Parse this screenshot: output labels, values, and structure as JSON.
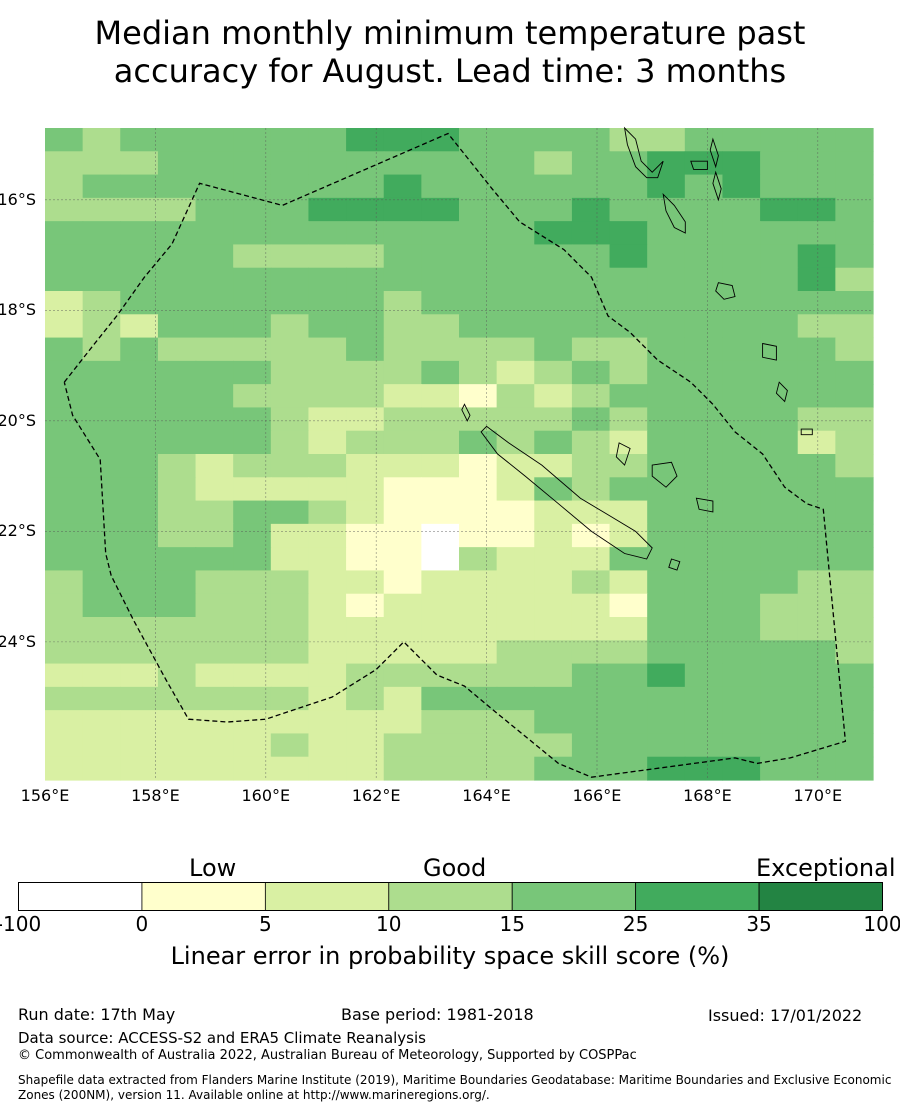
{
  "title_line1": "Median monthly minimum temperature past",
  "title_line2": "accuracy for August. Lead time: 3 months",
  "map": {
    "lon_range": [
      156,
      171
    ],
    "lat_range": [
      -26.5,
      -14.7
    ],
    "lat_ticks": [
      {
        "value": -16,
        "label": "16°S"
      },
      {
        "value": -18,
        "label": "18°S"
      },
      {
        "value": -20,
        "label": "20°S"
      },
      {
        "value": -22,
        "label": "22°S"
      },
      {
        "value": -24,
        "label": "24°S"
      }
    ],
    "lon_ticks": [
      {
        "value": 156,
        "label": "156°E"
      },
      {
        "value": 158,
        "label": "158°E"
      },
      {
        "value": 160,
        "label": "160°E"
      },
      {
        "value": 162,
        "label": "162°E"
      },
      {
        "value": 164,
        "label": "164°E"
      },
      {
        "value": 166,
        "label": "166°E"
      },
      {
        "value": 168,
        "label": "168°E"
      },
      {
        "value": 170,
        "label": "170°E"
      }
    ],
    "grid": true,
    "class_colors": [
      "#ffffff",
      "#ffffcc",
      "#d9f0a3",
      "#addd8e",
      "#78c679",
      "#41ab5d",
      "#238443"
    ],
    "skill_class_rows": [
      "4344444455544443344444",
      "3334444444444344555444",
      "3444444445444444545444",
      "3333444555544454444554",
      "4444444444444555444444",
      "4444433334444445444454",
      "4444444444444444444453",
      "2344444443444444444444",
      "2324443443344444444433",
      "4343333343333433444443",
      "4444443333432343444444",
      "4444433332213234444444",
      "4444443223333343444433",
      "4444443233343432444423",
      "4443233322212233444443",
      "4443222221112434444444",
      "4443344321111222444444",
      "4443342211011212444444",
      "4444442211032224444444",
      "3444333221222232444433",
      "3444333212222221444333",
      "3333333222222222444333",
      "3333333222223333444443",
      "2223222233333344544444",
      "3333333232444444444444",
      "2222222222333444444444",
      "2222223223333344444444",
      "2222222223333444555444"
    ],
    "eez_boundary": [
      [
        156.35,
        -19.3
      ],
      [
        156.9,
        -18.6
      ],
      [
        157.3,
        -18.1
      ],
      [
        157.8,
        -17.4
      ],
      [
        158.3,
        -16.8
      ],
      [
        158.8,
        -15.7
      ],
      [
        160.3,
        -16.1
      ],
      [
        163.3,
        -14.8
      ],
      [
        164.1,
        -15.8
      ],
      [
        164.6,
        -16.4
      ],
      [
        165.4,
        -16.9
      ],
      [
        165.9,
        -17.4
      ],
      [
        166.2,
        -18.1
      ],
      [
        166.6,
        -18.4
      ],
      [
        167.1,
        -18.9
      ],
      [
        167.7,
        -19.3
      ],
      [
        168.1,
        -19.7
      ],
      [
        168.5,
        -20.2
      ],
      [
        169.0,
        -20.6
      ],
      [
        169.4,
        -21.2
      ],
      [
        169.8,
        -21.5
      ],
      [
        170.1,
        -21.6
      ],
      [
        170.5,
        -25.8
      ],
      [
        169.5,
        -26.1
      ],
      [
        168.9,
        -26.2
      ],
      [
        168.5,
        -26.1
      ],
      [
        165.9,
        -26.45
      ],
      [
        165.3,
        -26.2
      ],
      [
        164.2,
        -25.3
      ],
      [
        163.6,
        -24.8
      ],
      [
        163.1,
        -24.6
      ],
      [
        162.5,
        -24.0
      ],
      [
        162.0,
        -24.5
      ],
      [
        161.2,
        -25.0
      ],
      [
        160.0,
        -25.4
      ],
      [
        159.3,
        -25.45
      ],
      [
        158.6,
        -25.4
      ],
      [
        158.2,
        -24.7
      ],
      [
        157.6,
        -23.6
      ],
      [
        157.2,
        -22.8
      ],
      [
        157.1,
        -22.4
      ],
      [
        157.0,
        -20.7
      ],
      [
        156.5,
        -19.9
      ],
      [
        156.35,
        -19.3
      ]
    ],
    "islands": [
      {
        "name": "New Caledonia",
        "points": [
          [
            164.0,
            -20.1
          ],
          [
            164.4,
            -20.4
          ],
          [
            165.0,
            -20.8
          ],
          [
            165.7,
            -21.4
          ],
          [
            166.2,
            -21.7
          ],
          [
            166.7,
            -22.0
          ],
          [
            167.0,
            -22.3
          ],
          [
            166.9,
            -22.5
          ],
          [
            166.5,
            -22.4
          ],
          [
            165.9,
            -22.0
          ],
          [
            165.3,
            -21.5
          ],
          [
            164.7,
            -21.0
          ],
          [
            164.2,
            -20.6
          ],
          [
            163.9,
            -20.2
          ]
        ]
      },
      {
        "name": "Belep",
        "points": [
          [
            163.6,
            -19.7
          ],
          [
            163.7,
            -19.9
          ],
          [
            163.65,
            -20.0
          ],
          [
            163.55,
            -19.8
          ]
        ]
      },
      {
        "name": "Ouvea",
        "points": [
          [
            166.4,
            -20.4
          ],
          [
            166.6,
            -20.5
          ],
          [
            166.5,
            -20.8
          ],
          [
            166.35,
            -20.65
          ]
        ]
      },
      {
        "name": "Lifou",
        "points": [
          [
            167.0,
            -20.8
          ],
          [
            167.35,
            -20.75
          ],
          [
            167.45,
            -21.0
          ],
          [
            167.25,
            -21.2
          ],
          [
            167.0,
            -21.0
          ]
        ]
      },
      {
        "name": "Mare",
        "points": [
          [
            167.8,
            -21.4
          ],
          [
            168.1,
            -21.45
          ],
          [
            168.1,
            -21.65
          ],
          [
            167.85,
            -21.6
          ]
        ]
      },
      {
        "name": "Isle of Pines",
        "points": [
          [
            167.35,
            -22.5
          ],
          [
            167.5,
            -22.55
          ],
          [
            167.45,
            -22.7
          ],
          [
            167.3,
            -22.65
          ]
        ]
      },
      {
        "name": "Espiritu Santo",
        "points": [
          [
            166.5,
            -14.7
          ],
          [
            166.7,
            -14.9
          ],
          [
            166.8,
            -15.3
          ],
          [
            167.0,
            -15.5
          ],
          [
            167.2,
            -15.3
          ],
          [
            167.1,
            -15.6
          ],
          [
            166.9,
            -15.6
          ],
          [
            166.7,
            -15.4
          ],
          [
            166.55,
            -15.0
          ]
        ]
      },
      {
        "name": "Malakula",
        "points": [
          [
            167.2,
            -15.9
          ],
          [
            167.4,
            -16.1
          ],
          [
            167.6,
            -16.4
          ],
          [
            167.6,
            -16.6
          ],
          [
            167.4,
            -16.5
          ],
          [
            167.25,
            -16.2
          ]
        ]
      },
      {
        "name": "Maewo",
        "points": [
          [
            168.1,
            -14.9
          ],
          [
            168.2,
            -15.2
          ],
          [
            168.15,
            -15.4
          ],
          [
            168.05,
            -15.1
          ]
        ]
      },
      {
        "name": "Pentecost",
        "points": [
          [
            168.15,
            -15.5
          ],
          [
            168.25,
            -15.8
          ],
          [
            168.2,
            -16.0
          ],
          [
            168.1,
            -15.7
          ]
        ]
      },
      {
        "name": "Ambae",
        "points": [
          [
            167.7,
            -15.3
          ],
          [
            168.0,
            -15.3
          ],
          [
            168.0,
            -15.45
          ],
          [
            167.75,
            -15.45
          ]
        ]
      },
      {
        "name": "Efate",
        "points": [
          [
            168.2,
            -17.5
          ],
          [
            168.45,
            -17.55
          ],
          [
            168.5,
            -17.75
          ],
          [
            168.3,
            -17.8
          ],
          [
            168.15,
            -17.65
          ]
        ]
      },
      {
        "name": "Erromango",
        "points": [
          [
            169.0,
            -18.6
          ],
          [
            169.25,
            -18.65
          ],
          [
            169.25,
            -18.9
          ],
          [
            169.0,
            -18.85
          ]
        ]
      },
      {
        "name": "Tanna",
        "points": [
          [
            169.3,
            -19.3
          ],
          [
            169.45,
            -19.45
          ],
          [
            169.4,
            -19.65
          ],
          [
            169.25,
            -19.5
          ]
        ]
      },
      {
        "name": "Aneityum",
        "points": [
          [
            169.7,
            -20.15
          ],
          [
            169.9,
            -20.15
          ],
          [
            169.9,
            -20.25
          ],
          [
            169.7,
            -20.25
          ]
        ]
      }
    ]
  },
  "colorbar": {
    "labels": {
      "low": "Low",
      "good": "Good",
      "exceptional": "Exceptional"
    },
    "ticks": [
      "-100",
      "0",
      "5",
      "10",
      "15",
      "25",
      "35",
      "100"
    ],
    "title": "Linear error in probability space skill score (%)"
  },
  "footer": {
    "run_date": "Run date: 17th May",
    "base_period": "Base period: 1981-2018",
    "issued": "Issued: 17/01/2022",
    "data_source": "Data source: ACCESS-S2 and ERA5 Climate Reanalysis",
    "copyright": "© Commonwealth of Australia 2022, Australian Bureau of Meteorology, Supported by COSPPac",
    "shapefile_1": "Shapefile data extracted from Flanders Marine Institute (2019), Maritime Boundaries Geodatabase: Maritime Boundaries and Exclusive Economic",
    "shapefile_2": "Zones (200NM), version 11. Available online at http://www.marineregions.org/."
  }
}
